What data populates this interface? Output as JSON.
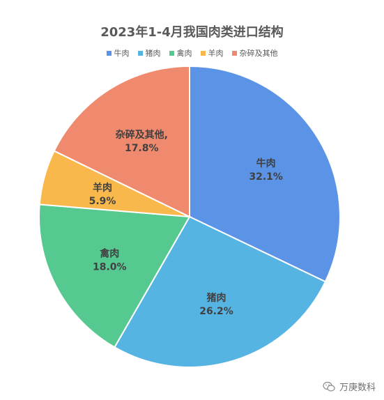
{
  "chart_data": {
    "type": "pie",
    "title": "2023年1-4月我国肉类进口结构",
    "legend_position": "top",
    "slices": [
      {
        "name": "牛肉",
        "value": 32.1,
        "label_name": "牛肉",
        "label_value": "32.1%",
        "color": "#5B93E6"
      },
      {
        "name": "猪肉",
        "value": 26.2,
        "label_name": "猪肉",
        "label_value": "26.2%",
        "color": "#56B4E3"
      },
      {
        "name": "禽肉",
        "value": 18.0,
        "label_name": "禽肉",
        "label_value": "18.0%",
        "color": "#56C990"
      },
      {
        "name": "羊肉",
        "value": 5.9,
        "label_name": "羊肉",
        "label_value": "5.9%",
        "color": "#F9B84C"
      },
      {
        "name": "杂碎及其他",
        "value": 17.8,
        "label_name": "杂碎及其他,",
        "label_value": "17.8%",
        "color": "#F08A6E"
      }
    ]
  },
  "watermark": {
    "text": "万庚数科",
    "icon": "wechat-icon"
  }
}
